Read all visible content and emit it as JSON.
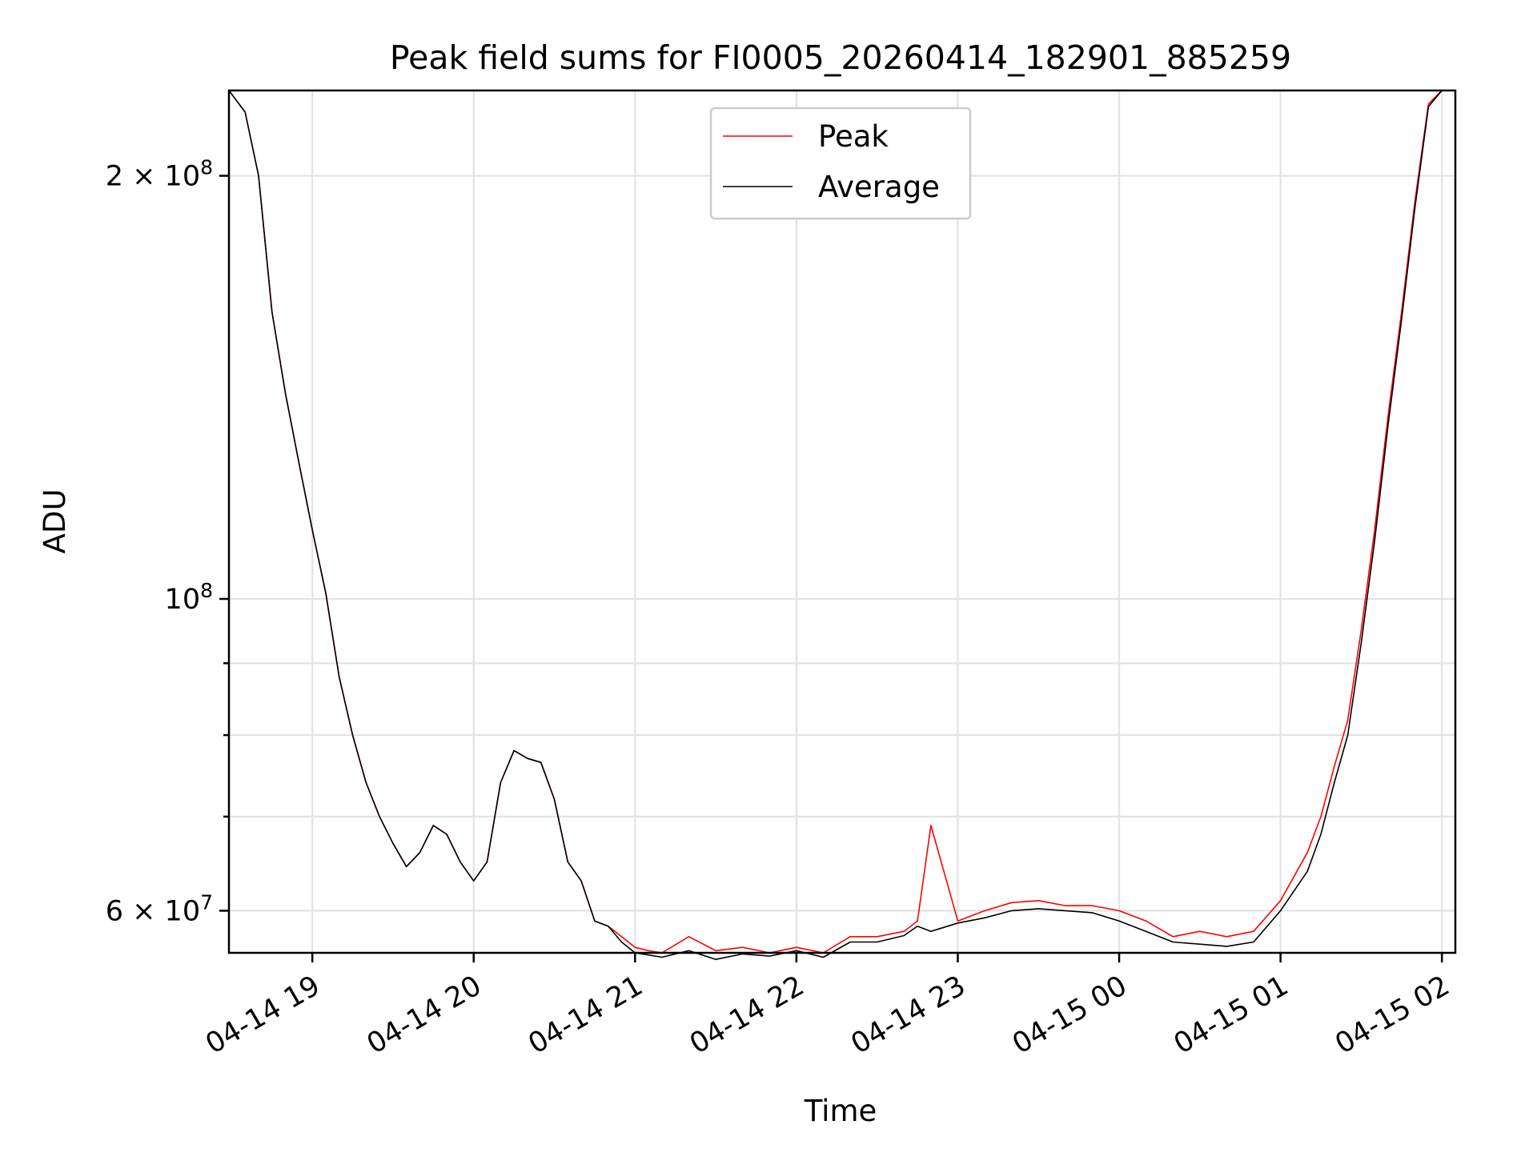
{
  "chart_data": {
    "type": "line",
    "title": "Peak field sums for FI0005_20260414_182901_885259",
    "xlabel": "Time",
    "ylabel": "ADU",
    "yscale": "log",
    "xlim": [
      "2026-04-14 18:29",
      "2026-04-15 02:05"
    ],
    "ylim": [
      56000000,
      230000000
    ],
    "grid": true,
    "legend_position": "upper center",
    "x_ticks": [
      "04-14 19",
      "04-14 20",
      "04-14 21",
      "04-14 22",
      "04-14 23",
      "04-15 00",
      "04-15 01",
      "04-15 02"
    ],
    "y_tick_labels": [
      {
        "value": 200000000,
        "mantissa": "2",
        "exp": "8"
      },
      {
        "value": 100000000,
        "mantissa": "",
        "exp": "8"
      },
      {
        "value": 60000000,
        "mantissa": "6",
        "exp": "7"
      }
    ],
    "y_minor_ticks": [
      70000000,
      80000000,
      90000000
    ],
    "x": [
      "2026-04-14 18:29",
      "2026-04-14 18:35",
      "2026-04-14 18:40",
      "2026-04-14 18:45",
      "2026-04-14 18:50",
      "2026-04-14 18:55",
      "2026-04-14 19:00",
      "2026-04-14 19:05",
      "2026-04-14 19:10",
      "2026-04-14 19:15",
      "2026-04-14 19:20",
      "2026-04-14 19:25",
      "2026-04-14 19:30",
      "2026-04-14 19:35",
      "2026-04-14 19:40",
      "2026-04-14 19:45",
      "2026-04-14 19:50",
      "2026-04-14 19:55",
      "2026-04-14 20:00",
      "2026-04-14 20:05",
      "2026-04-14 20:10",
      "2026-04-14 20:15",
      "2026-04-14 20:20",
      "2026-04-14 20:25",
      "2026-04-14 20:30",
      "2026-04-14 20:35",
      "2026-04-14 20:40",
      "2026-04-14 20:45",
      "2026-04-14 20:50",
      "2026-04-14 20:55",
      "2026-04-14 21:00",
      "2026-04-14 21:05",
      "2026-04-14 21:10",
      "2026-04-14 21:20",
      "2026-04-14 21:30",
      "2026-04-14 21:40",
      "2026-04-14 21:50",
      "2026-04-14 22:00",
      "2026-04-14 22:10",
      "2026-04-14 22:20",
      "2026-04-14 22:30",
      "2026-04-14 22:40",
      "2026-04-14 22:45",
      "2026-04-14 22:50",
      "2026-04-14 23:00",
      "2026-04-14 23:10",
      "2026-04-14 23:20",
      "2026-04-14 23:30",
      "2026-04-14 23:40",
      "2026-04-14 23:50",
      "2026-04-15 00:00",
      "2026-04-15 00:10",
      "2026-04-15 00:20",
      "2026-04-15 00:30",
      "2026-04-15 00:40",
      "2026-04-15 00:50",
      "2026-04-15 01:00",
      "2026-04-15 01:10",
      "2026-04-15 01:15",
      "2026-04-15 01:20",
      "2026-04-15 01:25",
      "2026-04-15 01:30",
      "2026-04-15 01:35",
      "2026-04-15 01:40",
      "2026-04-15 01:45",
      "2026-04-15 01:50",
      "2026-04-15 01:55",
      "2026-04-15 02:00",
      "2026-04-15 02:05"
    ],
    "series": [
      {
        "name": "Peak",
        "color": "#ff0000",
        "values": [
          230000000,
          222000000,
          200000000,
          160000000,
          140000000,
          125000000,
          112000000,
          101000000,
          88000000,
          80000000,
          74000000,
          70000000,
          67000000,
          64500000,
          66000000,
          69000000,
          68000000,
          65000000,
          63000000,
          65000000,
          74000000,
          78000000,
          77000000,
          76500000,
          72000000,
          65000000,
          63000000,
          59000000,
          58500000,
          57500000,
          56500000,
          56200000,
          56000000,
          57500000,
          56200000,
          56500000,
          56000000,
          56500000,
          56000000,
          57500000,
          57500000,
          58000000,
          59000000,
          69000000,
          59000000,
          60000000,
          60800000,
          61000000,
          60500000,
          60500000,
          60000000,
          59000000,
          57500000,
          58000000,
          57500000,
          58000000,
          61000000,
          66000000,
          70000000,
          76000000,
          82000000,
          95000000,
          112000000,
          135000000,
          160000000,
          192000000,
          225000000,
          230000000,
          230000000
        ]
      },
      {
        "name": "Average",
        "color": "#000000",
        "values": [
          230000000,
          222000000,
          200000000,
          160000000,
          140000000,
          125000000,
          112000000,
          101000000,
          88000000,
          80000000,
          74000000,
          70000000,
          67000000,
          64500000,
          66000000,
          69000000,
          68000000,
          65000000,
          63000000,
          65000000,
          74000000,
          78000000,
          77000000,
          76500000,
          72000000,
          65000000,
          63000000,
          59000000,
          58500000,
          57000000,
          56000000,
          55800000,
          55600000,
          56200000,
          55400000,
          55900000,
          55700000,
          56200000,
          55600000,
          57000000,
          57000000,
          57600000,
          58500000,
          58000000,
          58800000,
          59300000,
          60000000,
          60200000,
          60000000,
          59800000,
          59000000,
          58000000,
          57000000,
          56800000,
          56600000,
          57000000,
          60000000,
          64000000,
          68000000,
          74000000,
          80000000,
          93000000,
          110000000,
          133000000,
          158000000,
          190000000,
          224000000,
          230000000,
          230000000
        ]
      }
    ]
  }
}
